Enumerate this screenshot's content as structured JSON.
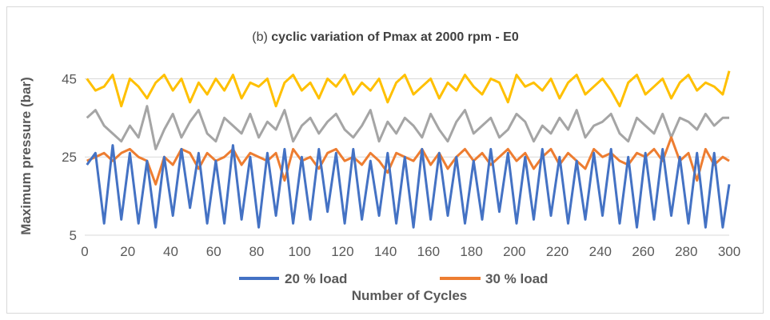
{
  "chart_data": {
    "type": "line",
    "title_prefix": "(b) ",
    "title_main": "cyclic variation of Pmax at 2000 rpm - E0",
    "xlabel": "Number of Cycles",
    "ylabel": "Maximum pressure (bar)",
    "xlim": [
      0,
      300
    ],
    "ylim": [
      5,
      50
    ],
    "x_ticks": [
      "0",
      "20",
      "40",
      "60",
      "80",
      "100",
      "120",
      "140",
      "160",
      "180",
      "200",
      "220",
      "240",
      "260",
      "280",
      "300"
    ],
    "y_ticks": [
      "5",
      "25",
      "45"
    ],
    "grid": "horizontal",
    "legend_position": "bottom",
    "x": [
      1,
      5,
      9,
      13,
      17,
      21,
      25,
      29,
      33,
      37,
      41,
      45,
      49,
      53,
      57,
      61,
      65,
      69,
      73,
      77,
      81,
      85,
      89,
      93,
      97,
      101,
      105,
      109,
      113,
      117,
      121,
      125,
      129,
      133,
      137,
      141,
      145,
      149,
      153,
      157,
      161,
      165,
      169,
      173,
      177,
      181,
      185,
      189,
      193,
      197,
      201,
      205,
      209,
      213,
      217,
      221,
      225,
      229,
      233,
      237,
      241,
      245,
      249,
      253,
      257,
      261,
      265,
      269,
      273,
      277,
      281,
      285,
      289,
      293,
      297,
      300
    ],
    "series": [
      {
        "name": "20 % load",
        "color": "#4472c4",
        "values": [
          23,
          26,
          8,
          28,
          9,
          26,
          8,
          24,
          7,
          25,
          10,
          27,
          12,
          26,
          8,
          24,
          8,
          28,
          9,
          25,
          7,
          26,
          10,
          27,
          8,
          25,
          9,
          27,
          11,
          26,
          8,
          27,
          9,
          24,
          10,
          26,
          8,
          25,
          7,
          27,
          9,
          26,
          10,
          25,
          8,
          24,
          9,
          27,
          11,
          26,
          8,
          25,
          9,
          27,
          10,
          25,
          8,
          24,
          9,
          26,
          10,
          27,
          8,
          25,
          7,
          26,
          9,
          27,
          10,
          25,
          8,
          26,
          7,
          26,
          7,
          18
        ]
      },
      {
        "name": "30 % load",
        "color": "#ed7d31",
        "values": [
          24,
          25,
          26,
          24,
          26,
          27,
          25,
          24,
          18,
          25,
          23,
          27,
          26,
          22,
          26,
          24,
          25,
          27,
          23,
          26,
          25,
          24,
          26,
          19,
          27,
          24,
          25,
          22,
          26,
          27,
          24,
          25,
          23,
          26,
          24,
          21,
          26,
          25,
          24,
          27,
          23,
          26,
          22,
          25,
          27,
          24,
          26,
          23,
          25,
          27,
          24,
          26,
          22,
          25,
          27,
          23,
          26,
          24,
          22,
          27,
          25,
          26,
          24,
          23,
          26,
          25,
          27,
          24,
          30,
          24,
          26,
          19,
          27,
          23,
          25,
          24
        ]
      },
      {
        "name": "",
        "color": "#a5a5a5",
        "values": [
          35,
          37,
          33,
          31,
          29,
          33,
          30,
          38,
          27,
          32,
          36,
          30,
          34,
          37,
          31,
          29,
          35,
          33,
          31,
          36,
          30,
          34,
          32,
          37,
          29,
          33,
          35,
          31,
          34,
          36,
          32,
          30,
          33,
          37,
          29,
          34,
          31,
          35,
          33,
          30,
          36,
          32,
          29,
          34,
          37,
          31,
          33,
          35,
          30,
          32,
          36,
          34,
          29,
          33,
          31,
          35,
          32,
          37,
          30,
          33,
          34,
          36,
          31,
          29,
          35,
          33,
          31,
          36,
          30,
          35,
          34,
          32,
          36,
          33,
          35,
          35
        ]
      },
      {
        "name": "",
        "color": "#ffc000",
        "values": [
          45,
          42,
          43,
          46,
          38,
          45,
          43,
          40,
          44,
          46,
          42,
          45,
          39,
          44,
          41,
          45,
          42,
          46,
          40,
          44,
          43,
          45,
          38,
          44,
          46,
          42,
          44,
          40,
          45,
          43,
          46,
          41,
          44,
          42,
          45,
          39,
          44,
          46,
          41,
          43,
          45,
          40,
          44,
          42,
          46,
          43,
          41,
          45,
          44,
          39,
          46,
          43,
          44,
          42,
          45,
          40,
          44,
          46,
          41,
          43,
          45,
          42,
          38,
          44,
          46,
          41,
          43,
          45,
          40,
          44,
          46,
          42,
          44,
          43,
          41,
          47
        ]
      }
    ]
  }
}
